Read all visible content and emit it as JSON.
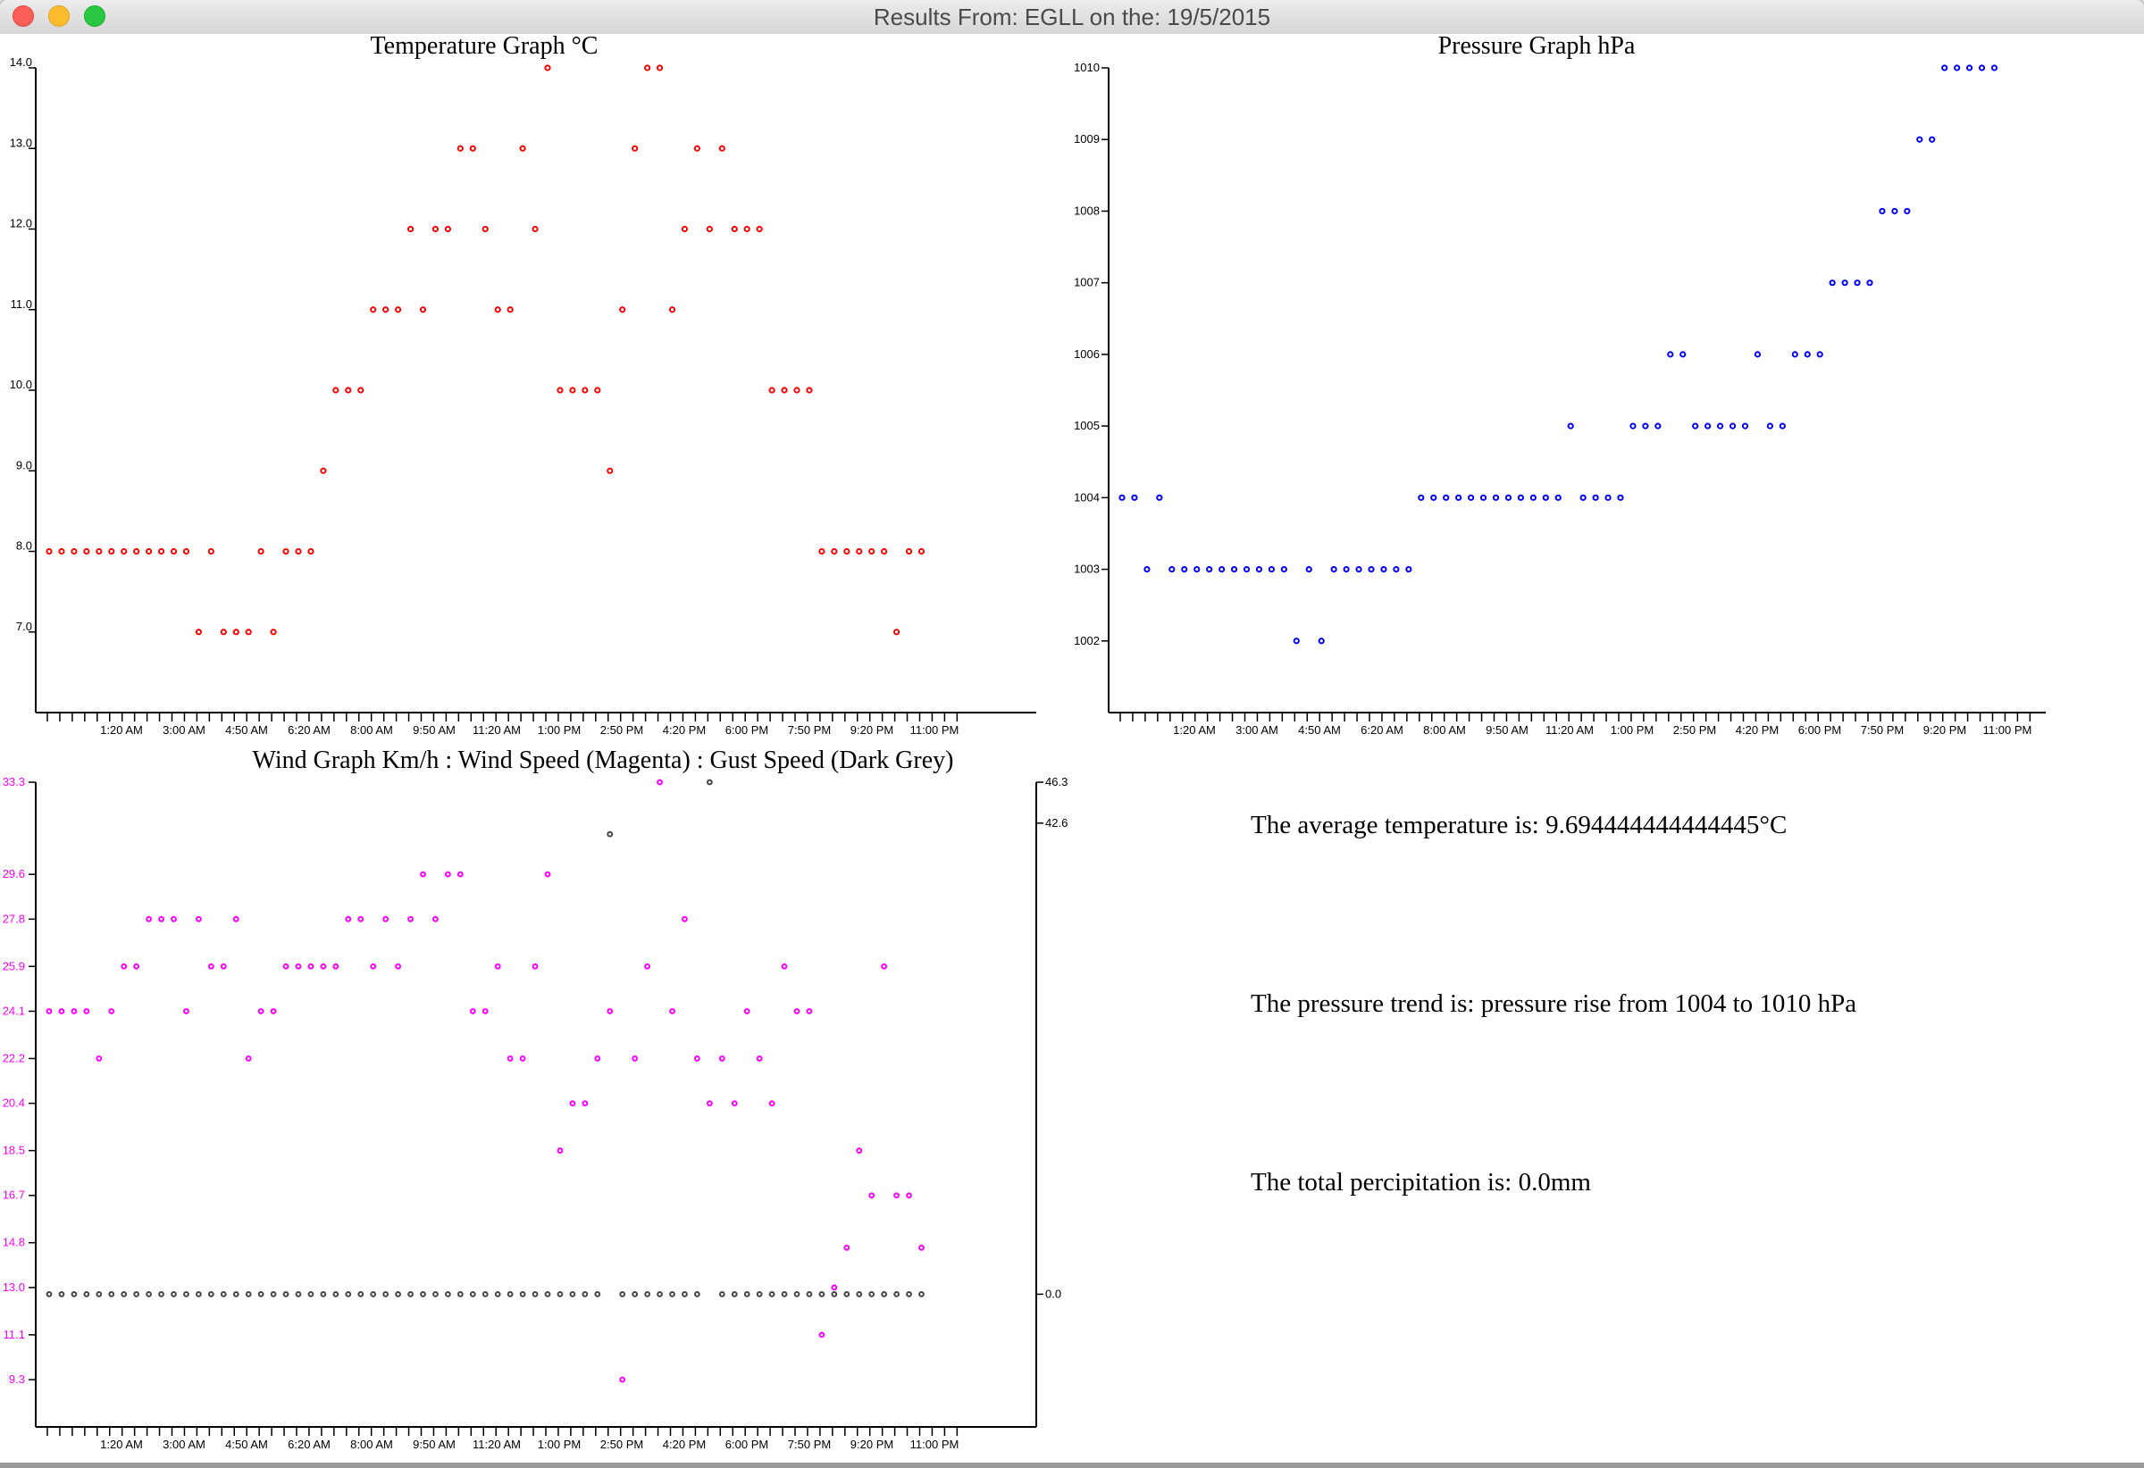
{
  "window": {
    "title": "Results From: EGLL on the: 19/5/2015"
  },
  "summary": {
    "avg_temp": "The average temperature is: 9.694444444444445°C",
    "pressure_trend": "The pressure trend is: pressure rise from 1004 to 1010 hPa",
    "precip": "The total percipitation is: 0.0mm"
  },
  "colors": {
    "temperature": "#ff0000",
    "pressure": "#0000ff",
    "wind": "#ff00ff",
    "gust": "#444444",
    "axis": "#000000"
  },
  "chart_data": [
    {
      "type": "scatter",
      "title": "Temperature Graph °C",
      "x_tick_labels": [
        "1:20 AM",
        "3:00 AM",
        "4:50 AM",
        "6:20 AM",
        "8:00 AM",
        "9:50 AM",
        "11:20 AM",
        "1:00 PM",
        "2:50 PM",
        "4:20 PM",
        "6:00 PM",
        "7:50 PM",
        "9:20 PM",
        "11:00 PM"
      ],
      "y_tick_labels": [
        "7.0",
        "8.0",
        "9.0",
        "10.0",
        "11.0",
        "12.0",
        "13.0",
        "14.0"
      ],
      "ylim": [
        6.0,
        14.0
      ],
      "grid": false,
      "series": [
        {
          "values": [
            8,
            8,
            8,
            8,
            8,
            8,
            8,
            8,
            8,
            8,
            8,
            8,
            7,
            8,
            7,
            7,
            7,
            8,
            7,
            8,
            8,
            8,
            9,
            10,
            10,
            10,
            11,
            11,
            11,
            12,
            11,
            12,
            12,
            13,
            13,
            12,
            11,
            11,
            13,
            12,
            14,
            10,
            10,
            10,
            10,
            9,
            11,
            13,
            14,
            14,
            11,
            12,
            13,
            12,
            13,
            12,
            12,
            12,
            10,
            10,
            10,
            10,
            8,
            8,
            8,
            8,
            8,
            8,
            7,
            8,
            8
          ]
        }
      ]
    },
    {
      "type": "scatter",
      "title": "Pressure Graph hPa",
      "x_tick_labels": [
        "1:20 AM",
        "3:00 AM",
        "4:50 AM",
        "6:20 AM",
        "8:00 AM",
        "9:50 AM",
        "11:20 AM",
        "1:00 PM",
        "2:50 PM",
        "4:20 PM",
        "6:00 PM",
        "7:50 PM",
        "9:20 PM",
        "11:00 PM"
      ],
      "y_tick_labels": [
        "1002",
        "1003",
        "1004",
        "1005",
        "1006",
        "1007",
        "1008",
        "1009",
        "1010"
      ],
      "ylim": [
        1001,
        1010
      ],
      "grid": false,
      "series": [
        {
          "values": [
            1004,
            1004,
            1003,
            1004,
            1003,
            1003,
            1003,
            1003,
            1003,
            1003,
            1003,
            1003,
            1003,
            1003,
            1002,
            1003,
            1002,
            1003,
            1003,
            1003,
            1003,
            1003,
            1003,
            1003,
            1004,
            1004,
            1004,
            1004,
            1004,
            1004,
            1004,
            1004,
            1004,
            1004,
            1004,
            1004,
            1005,
            1004,
            1004,
            1004,
            1004,
            1005,
            1005,
            1005,
            1006,
            1006,
            1005,
            1005,
            1005,
            1005,
            1005,
            1006,
            1005,
            1005,
            1006,
            1006,
            1006,
            1007,
            1007,
            1007,
            1007,
            1008,
            1008,
            1008,
            1009,
            1009,
            1010,
            1010,
            1010,
            1010,
            1010
          ]
        }
      ]
    },
    {
      "type": "scatter",
      "title": "Wind Graph Km/h : Wind Speed (Magenta) : Gust Speed (Dark Grey)",
      "x_tick_labels": [
        "1:20 AM",
        "3:00 AM",
        "4:50 AM",
        "6:20 AM",
        "8:00 AM",
        "9:50 AM",
        "11:20 AM",
        "1:00 PM",
        "2:50 PM",
        "4:20 PM",
        "6:00 PM",
        "7:50 PM",
        "9:20 PM",
        "11:00 PM"
      ],
      "y_tick_labels_left": [
        "9.3",
        "11.1",
        "13.0",
        "14.8",
        "16.7",
        "18.5",
        "20.4",
        "22.2",
        "24.1",
        "25.9",
        "27.8",
        "29.6",
        "33.3"
      ],
      "y_tick_labels_right": [
        "0.0",
        "42.6",
        "46.3"
      ],
      "ylim_left": [
        7.4,
        33.3
      ],
      "ylim_right": [
        -12,
        46.3
      ],
      "grid": false,
      "series": [
        {
          "name": "Wind Speed (Magenta)",
          "axis": "left",
          "values": [
            24.1,
            24.1,
            24.1,
            24.1,
            22.2,
            24.1,
            25.9,
            25.9,
            27.8,
            27.8,
            27.8,
            24.1,
            27.8,
            25.9,
            25.9,
            27.8,
            22.2,
            24.1,
            24.1,
            25.9,
            25.9,
            25.9,
            25.9,
            25.9,
            27.8,
            27.8,
            25.9,
            27.8,
            25.9,
            27.8,
            29.6,
            27.8,
            29.6,
            29.6,
            24.1,
            24.1,
            25.9,
            22.2,
            22.2,
            25.9,
            29.6,
            18.5,
            20.4,
            20.4,
            22.2,
            24.1,
            9.3,
            22.2,
            25.9,
            33.3,
            24.1,
            27.8,
            22.2,
            20.4,
            22.2,
            20.4,
            24.1,
            22.2,
            20.4,
            25.9,
            24.1,
            24.1,
            11.1,
            13.0,
            14.6,
            18.5,
            16.7,
            25.9,
            16.7,
            16.7,
            14.6
          ]
        },
        {
          "name": "Gust Speed (Dark Grey)",
          "axis": "right",
          "values": [
            0,
            0,
            0,
            0,
            0,
            0,
            0,
            0,
            0,
            0,
            0,
            0,
            0,
            0,
            0,
            0,
            0,
            0,
            0,
            0,
            0,
            0,
            0,
            0,
            0,
            0,
            0,
            0,
            0,
            0,
            0,
            0,
            0,
            0,
            0,
            0,
            0,
            0,
            0,
            0,
            0,
            0,
            0,
            0,
            0,
            null,
            0,
            0,
            0,
            0,
            0,
            0,
            0,
            null,
            0,
            0,
            0,
            0,
            0,
            0,
            0,
            0,
            0,
            0,
            0,
            0,
            0,
            0,
            0,
            0,
            0
          ],
          "extra_points": [
            {
              "index": 45,
              "value": 41.6
            },
            {
              "index": 53,
              "value": 46.3
            }
          ]
        }
      ]
    }
  ]
}
